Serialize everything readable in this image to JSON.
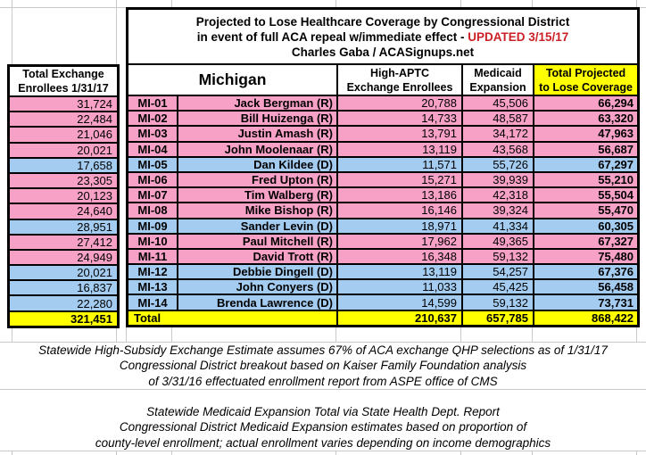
{
  "colors": {
    "pink": "#F8A1C7",
    "blue": "#A3CCF0",
    "yellow": "#FFFF00",
    "red": "#CB2026",
    "grid": "#C9C9C9"
  },
  "left_panel": {
    "header_line1": "Total Exchange",
    "header_line2": "Enrollees 1/31/17"
  },
  "table": {
    "title_line1": "Projected to Lose Healthcare Coverage by Congressional District",
    "title_line2_black": "in event of full ACA repeal w/immediate effect - ",
    "title_line2_red": "UPDATED 3/15/17",
    "title_line3": "Charles Gaba / ACASignups.net",
    "state_label": "Michigan",
    "col_aptc_line1": "High-APTC",
    "col_aptc_line2": "Exchange Enrollees",
    "col_medicaid_line1": "Medicaid",
    "col_medicaid_line2": "Expansion",
    "col_total_line1": "Total Projected",
    "col_total_line2": "to Lose Coverage",
    "rows": [
      {
        "district": "MI-01",
        "rep": "Jack Bergman (R)",
        "party": "R",
        "exchange": "31,724",
        "aptc": "20,788",
        "medicaid": "45,506",
        "total": "66,294"
      },
      {
        "district": "MI-02",
        "rep": "Bill Huizenga (R)",
        "party": "R",
        "exchange": "22,484",
        "aptc": "14,733",
        "medicaid": "48,587",
        "total": "63,320"
      },
      {
        "district": "MI-03",
        "rep": "Justin Amash (R)",
        "party": "R",
        "exchange": "21,046",
        "aptc": "13,791",
        "medicaid": "34,172",
        "total": "47,963"
      },
      {
        "district": "MI-04",
        "rep": "John Moolenaar (R)",
        "party": "R",
        "exchange": "20,021",
        "aptc": "13,119",
        "medicaid": "43,568",
        "total": "56,687"
      },
      {
        "district": "MI-05",
        "rep": "Dan Kildee (D)",
        "party": "D",
        "exchange": "17,658",
        "aptc": "11,571",
        "medicaid": "55,726",
        "total": "67,297"
      },
      {
        "district": "MI-06",
        "rep": "Fred Upton (R)",
        "party": "R",
        "exchange": "23,305",
        "aptc": "15,271",
        "medicaid": "39,939",
        "total": "55,210"
      },
      {
        "district": "MI-07",
        "rep": "Tim Walberg (R)",
        "party": "R",
        "exchange": "20,123",
        "aptc": "13,186",
        "medicaid": "42,318",
        "total": "55,504"
      },
      {
        "district": "MI-08",
        "rep": "Mike Bishop (R)",
        "party": "R",
        "exchange": "24,640",
        "aptc": "16,146",
        "medicaid": "39,324",
        "total": "55,470"
      },
      {
        "district": "MI-09",
        "rep": "Sander Levin (D)",
        "party": "D",
        "exchange": "28,951",
        "aptc": "18,971",
        "medicaid": "41,334",
        "total": "60,305"
      },
      {
        "district": "MI-10",
        "rep": "Paul Mitchell (R)",
        "party": "R",
        "exchange": "27,412",
        "aptc": "17,962",
        "medicaid": "49,365",
        "total": "67,327"
      },
      {
        "district": "MI-11",
        "rep": "David Trott (R)",
        "party": "R",
        "exchange": "24,949",
        "aptc": "16,348",
        "medicaid": "59,132",
        "total": "75,480"
      },
      {
        "district": "MI-12",
        "rep": "Debbie Dingell (D)",
        "party": "D",
        "exchange": "20,021",
        "aptc": "13,119",
        "medicaid": "54,257",
        "total": "67,376"
      },
      {
        "district": "MI-13",
        "rep": "John Conyers (D)",
        "party": "D",
        "exchange": "16,837",
        "aptc": "11,033",
        "medicaid": "45,425",
        "total": "56,458"
      },
      {
        "district": "MI-14",
        "rep": "Brenda Lawrence (D)",
        "party": "D",
        "exchange": "22,280",
        "aptc": "14,599",
        "medicaid": "59,132",
        "total": "73,731"
      }
    ],
    "total_row": {
      "label": "Total",
      "exchange": "321,451",
      "aptc": "210,637",
      "medicaid": "657,785",
      "total": "868,422"
    }
  },
  "footnotes": {
    "block1": [
      "Statewide High-Subsidy Exchange Estimate assumes 67% of ACA exchange QHP selections as of 1/31/17",
      "Congressional District breakout based on Kaiser Family Foundation analysis",
      "of 3/31/16 effectuated enrollment report from ASPE office of CMS"
    ],
    "block2": [
      "Statewide Medicaid Expansion Total via State Health Dept. Report",
      "Congressional District Medicaid Expansion estimates based on proportion of",
      "county-level enrollment; actual enrollment varies depending on income demographics"
    ]
  }
}
